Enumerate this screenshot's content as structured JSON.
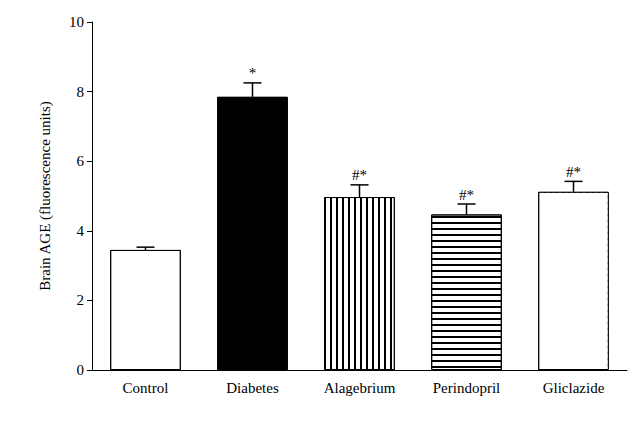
{
  "chart_data": {
    "type": "bar",
    "y_label": "Brain AGE (fluorescence units)",
    "categories": [
      "Control",
      "Diabetes",
      "Alagebrium",
      "Perindopril",
      "Gliclazide"
    ],
    "values": [
      3.45,
      7.85,
      4.97,
      4.47,
      5.12
    ],
    "errors": [
      0.08,
      0.4,
      0.35,
      0.3,
      0.3
    ],
    "annotations": [
      null,
      "*",
      "#*",
      "#*",
      "#*"
    ],
    "colors": [
      "#ffffff",
      "#000000",
      "#ffffff",
      "#ffffff",
      "#ffffff"
    ],
    "ylim": [
      0,
      10
    ],
    "yticks": [
      0,
      2,
      4,
      6,
      8,
      10
    ],
    "grid": false
  }
}
